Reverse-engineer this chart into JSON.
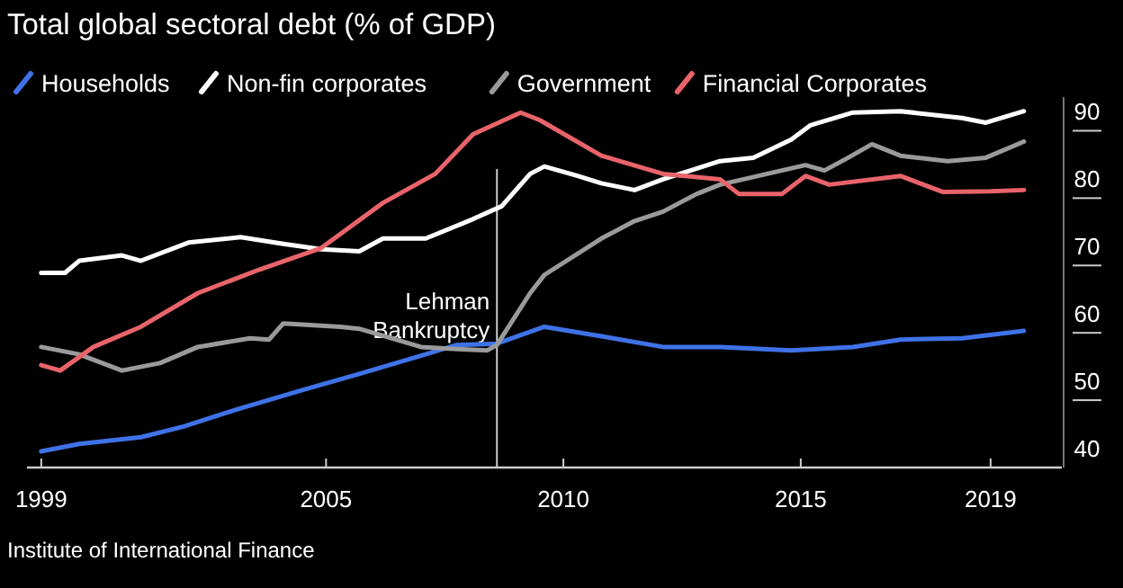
{
  "chart_data": {
    "type": "line",
    "title": "Total global sectoral debt (% of GDP)",
    "xlim": [
      1998.7,
      2020.5
    ],
    "xticks": [
      1999,
      2005,
      2010,
      2015,
      2019
    ],
    "ylim": [
      40,
      95
    ],
    "yticks": [
      40,
      50,
      60,
      70,
      80,
      90
    ],
    "grid": false,
    "legend": "top left",
    "series": [
      {
        "name": "Households",
        "color": "#3f72e6",
        "x": [
          1999,
          1999.8,
          2001.1,
          2002,
          2003.2,
          2004.5,
          2005.7,
          2007,
          2007.75,
          2008.6,
          2009.6,
          2010.8,
          2012.1,
          2013.3,
          2014.8,
          2016.1,
          2017.1,
          2018.4,
          2019.7
        ],
        "values": [
          42.4,
          43.5,
          44.5,
          46.1,
          48.8,
          51.5,
          53.9,
          56.6,
          58.2,
          58.4,
          60.9,
          59.5,
          57.9,
          57.9,
          57.4,
          57.9,
          59,
          59.2,
          60.3
        ]
      },
      {
        "name": "Non-fin corporates",
        "color": "#ffffff",
        "x": [
          1999,
          1999.5,
          1999.8,
          2000.7,
          2001.1,
          2002.1,
          2003.2,
          2004.1,
          2004.9,
          2005.7,
          2006.2,
          2007.1,
          2008.1,
          2008.7,
          2009.3,
          2009.6,
          2010.3,
          2010.8,
          2011.5,
          2012.1,
          2013.3,
          2014,
          2014.8,
          2015.2,
          2016.1,
          2017.1,
          2018.4,
          2018.9,
          2019.7
        ],
        "values": [
          68.9,
          68.9,
          70.7,
          71.5,
          70.7,
          73.4,
          74.2,
          73.2,
          72.4,
          72.1,
          74,
          74,
          76.9,
          78.8,
          83.6,
          84.7,
          83.3,
          82.2,
          81.2,
          82.8,
          85.5,
          86,
          88.7,
          90.8,
          92.7,
          92.9,
          91.9,
          91.2,
          92.9
        ]
      },
      {
        "name": "Government",
        "color": "#9a9a9a",
        "x": [
          1999,
          1999.8,
          2000.7,
          2001.5,
          2002.3,
          2003.4,
          2003.8,
          2004.1,
          2005.3,
          2005.7,
          2007,
          2007.75,
          2008.4,
          2008.6,
          2009.3,
          2009.6,
          2010.8,
          2011.5,
          2012.1,
          2012.8,
          2013.3,
          2014.6,
          2015.1,
          2015.5,
          2016,
          2016.5,
          2017.1,
          2018.1,
          2018.9,
          2019.7
        ],
        "values": [
          57.9,
          56.8,
          54.4,
          55.5,
          57.9,
          59.2,
          59,
          61.4,
          60.9,
          60.6,
          57.9,
          57.6,
          57.4,
          58.2,
          65.9,
          68.6,
          74,
          76.6,
          78,
          80.6,
          82,
          84.1,
          84.9,
          84.1,
          86,
          88,
          86.3,
          85.5,
          86,
          88.4
        ]
      },
      {
        "name": "Financial Corporates",
        "color": "#e8646a",
        "x": [
          1999,
          1999.4,
          2000.1,
          2001.1,
          2002.3,
          2003.6,
          2004.9,
          2006.2,
          2007.3,
          2008.1,
          2009.1,
          2009.5,
          2010.8,
          2012.1,
          2013.3,
          2013.7,
          2014.6,
          2015.1,
          2015.6,
          2017.1,
          2018,
          2019,
          2019.7
        ],
        "values": [
          55.2,
          54.4,
          57.9,
          60.9,
          65.9,
          69.4,
          72.6,
          79.3,
          83.6,
          89.5,
          92.7,
          91.6,
          86.3,
          83.6,
          82.8,
          80.6,
          80.6,
          83.3,
          82,
          83.3,
          80.9,
          81,
          81.2
        ]
      }
    ],
    "ref_lines": [
      {
        "axis": "x",
        "value": 2008.6,
        "label": "Lehman Bankruptcy",
        "color": "#cccccc"
      }
    ],
    "annotations": [
      "Institute of International Finance"
    ]
  }
}
